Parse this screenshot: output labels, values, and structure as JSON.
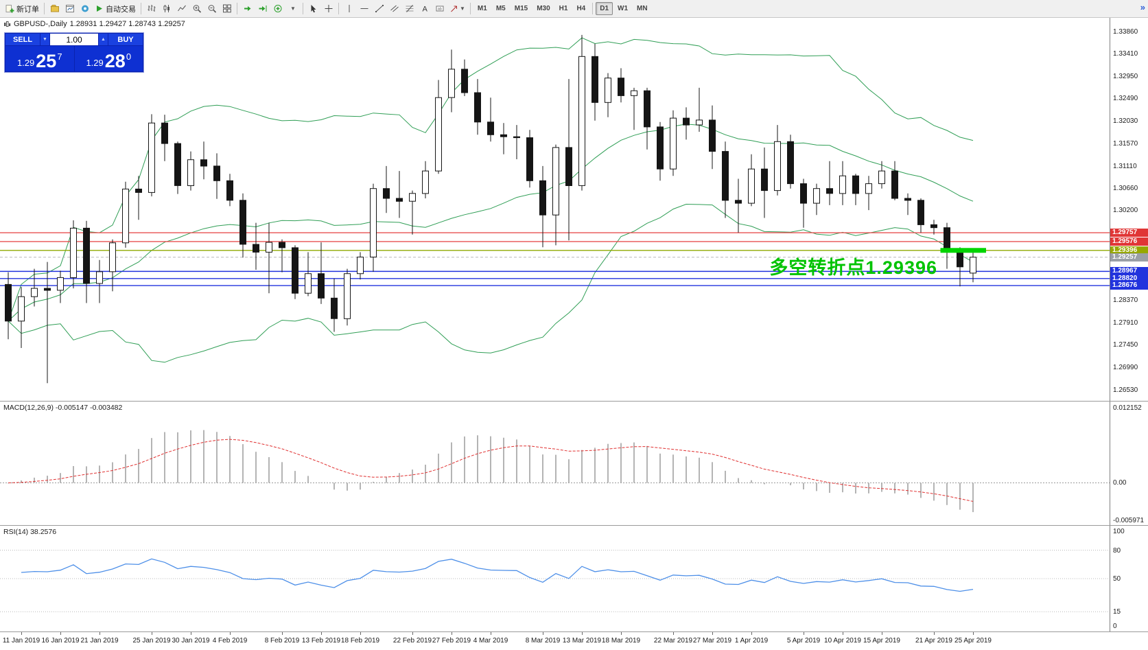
{
  "toolbar": {
    "new_order_label": "新订单",
    "autotrading_label": "自动交易",
    "timeframes": [
      "M1",
      "M5",
      "M15",
      "M30",
      "H1",
      "H4",
      "D1",
      "W1",
      "MN"
    ],
    "active_timeframe": "D1",
    "overflow_label": "»"
  },
  "symbol_info": {
    "symbol_period": "GBPUSD-,Daily",
    "ohlc": "1.28931 1.29427 1.28743 1.29257"
  },
  "trade_panel": {
    "sell_label": "SELL",
    "buy_label": "BUY",
    "volume": "1.00",
    "sell_price_main": "1.29",
    "sell_price_big": "25",
    "sell_price_sup": "7",
    "buy_price_main": "1.29",
    "buy_price_big": "28",
    "buy_price_sup": "0"
  },
  "annotation": {
    "text": "多空转折点1.29396",
    "color": "#00c300"
  },
  "chart_data": {
    "type": "candlestick",
    "symbol": "GBPUSD",
    "timeframe": "Daily",
    "ohlc_display": {
      "open": "1.28931",
      "high": "1.29427",
      "low": "1.28743",
      "close": "1.29257"
    },
    "y_range": {
      "max": 1.3415,
      "min": 1.2632
    },
    "candle_format": [
      "date",
      "open",
      "high",
      "low",
      "close"
    ],
    "candles": [
      [
        "10 Jan 2019",
        1.287,
        1.2895,
        1.2758,
        1.2795
      ],
      [
        "11 Jan 2019",
        1.2795,
        1.2865,
        1.274,
        1.2845
      ],
      [
        "14 Jan 2019",
        1.2845,
        1.2902,
        1.2825,
        1.2862
      ],
      [
        "15 Jan 2019",
        1.2862,
        1.2916,
        1.2668,
        1.2858
      ],
      [
        "16 Jan 2019",
        1.2858,
        1.2898,
        1.2832,
        1.2884
      ],
      [
        "17 Jan 2019",
        1.2884,
        1.3001,
        1.2862,
        1.2985
      ],
      [
        "18 Jan 2019",
        1.2985,
        1.3,
        1.2832,
        1.2872
      ],
      [
        "21 Jan 2019",
        1.2872,
        1.292,
        1.2832,
        1.2896
      ],
      [
        "22 Jan 2019",
        1.2896,
        1.2962,
        1.2856,
        1.2955
      ],
      [
        "23 Jan 2019",
        1.2955,
        1.308,
        1.2945,
        1.3065
      ],
      [
        "24 Jan 2019",
        1.3065,
        1.3092,
        1.3002,
        1.3058
      ],
      [
        "25 Jan 2019",
        1.3058,
        1.3218,
        1.305,
        1.32
      ],
      [
        "28 Jan 2019",
        1.32,
        1.3217,
        1.3122,
        1.3158
      ],
      [
        "29 Jan 2019",
        1.3158,
        1.3162,
        1.3055,
        1.3072
      ],
      [
        "30 Jan 2019",
        1.3072,
        1.3142,
        1.3062,
        1.3125
      ],
      [
        "31 Jan 2019",
        1.3125,
        1.3162,
        1.3085,
        1.3112
      ],
      [
        "1 Feb 2019",
        1.3112,
        1.3138,
        1.3045,
        1.3082
      ],
      [
        "4 Feb 2019",
        1.3082,
        1.3096,
        1.303,
        1.3042
      ],
      [
        "5 Feb 2019",
        1.3042,
        1.3056,
        1.2925,
        1.2952
      ],
      [
        "6 Feb 2019",
        1.2952,
        1.2996,
        1.29,
        1.2936
      ],
      [
        "7 Feb 2019",
        1.2936,
        1.2996,
        1.2852,
        1.2956
      ],
      [
        "8 Feb 2019",
        1.2956,
        1.2962,
        1.2895,
        1.2945
      ],
      [
        "11 Feb 2019",
        1.2945,
        1.295,
        1.284,
        1.2852
      ],
      [
        "12 Feb 2019",
        1.2852,
        1.2936,
        1.2846,
        1.2892
      ],
      [
        "13 Feb 2019",
        1.2892,
        1.2956,
        1.283,
        1.2842
      ],
      [
        "14 Feb 2019",
        1.2842,
        1.2882,
        1.2773,
        1.28
      ],
      [
        "15 Feb 2019",
        1.28,
        1.2902,
        1.2786,
        1.2892
      ],
      [
        "18 Feb 2019",
        1.2892,
        1.2936,
        1.288,
        1.2926
      ],
      [
        "19 Feb 2019",
        1.2926,
        1.3076,
        1.2896,
        1.3066
      ],
      [
        "20 Feb 2019",
        1.3066,
        1.3112,
        1.3016,
        1.3046
      ],
      [
        "21 Feb 2019",
        1.3046,
        1.3102,
        1.3006,
        1.304
      ],
      [
        "22 Feb 2019",
        1.304,
        1.3062,
        1.2972,
        1.3056
      ],
      [
        "25 Feb 2019",
        1.3056,
        1.3122,
        1.3046,
        1.3102
      ],
      [
        "26 Feb 2019",
        1.3102,
        1.3288,
        1.3096,
        1.3252
      ],
      [
        "27 Feb 2019",
        1.3252,
        1.335,
        1.3222,
        1.331
      ],
      [
        "28 Feb 2019",
        1.331,
        1.333,
        1.3255,
        1.3262
      ],
      [
        "1 Mar 2019",
        1.3262,
        1.329,
        1.3176,
        1.3202
      ],
      [
        "4 Mar 2019",
        1.3202,
        1.3252,
        1.3162,
        1.3176
      ],
      [
        "5 Mar 2019",
        1.3176,
        1.32,
        1.3136,
        1.3172
      ],
      [
        "6 Mar 2019",
        1.3172,
        1.3196,
        1.3126,
        1.317
      ],
      [
        "7 Mar 2019",
        1.317,
        1.3186,
        1.3068,
        1.3082
      ],
      [
        "8 Mar 2019",
        1.3082,
        1.3112,
        1.2946,
        1.3012
      ],
      [
        "11 Mar 2019",
        1.3012,
        1.3156,
        1.295,
        1.315
      ],
      [
        "12 Mar 2019",
        1.315,
        1.329,
        1.296,
        1.3072
      ],
      [
        "13 Mar 2019",
        1.3072,
        1.338,
        1.3062,
        1.3336
      ],
      [
        "14 Mar 2019",
        1.3336,
        1.3362,
        1.3205,
        1.3242
      ],
      [
        "15 Mar 2019",
        1.3242,
        1.3302,
        1.3212,
        1.3292
      ],
      [
        "18 Mar 2019",
        1.3292,
        1.3312,
        1.3242,
        1.3256
      ],
      [
        "19 Mar 2019",
        1.3256,
        1.3272,
        1.3186,
        1.3266
      ],
      [
        "20 Mar 2019",
        1.3266,
        1.3272,
        1.3146,
        1.3192
      ],
      [
        "21 Mar 2019",
        1.3192,
        1.3202,
        1.3082,
        1.3106
      ],
      [
        "22 Mar 2019",
        1.3106,
        1.3226,
        1.3092,
        1.321
      ],
      [
        "25 Mar 2019",
        1.321,
        1.3232,
        1.3166,
        1.3196
      ],
      [
        "26 Mar 2019",
        1.3196,
        1.3272,
        1.3182,
        1.3206
      ],
      [
        "27 Mar 2019",
        1.3206,
        1.3236,
        1.3106,
        1.3142
      ],
      [
        "28 Mar 2019",
        1.3142,
        1.3162,
        1.3006,
        1.3042
      ],
      [
        "29 Mar 2019",
        1.3042,
        1.3086,
        1.2976,
        1.3036
      ],
      [
        "1 Apr 2019",
        1.3036,
        1.3136,
        1.303,
        1.3106
      ],
      [
        "2 Apr 2019",
        1.3106,
        1.315,
        1.3006,
        1.3062
      ],
      [
        "3 Apr 2019",
        1.3062,
        1.3196,
        1.3052,
        1.3162
      ],
      [
        "4 Apr 2019",
        1.3162,
        1.3176,
        1.3066,
        1.3076
      ],
      [
        "5 Apr 2019",
        1.3076,
        1.3086,
        1.2986,
        1.3036
      ],
      [
        "8 Apr 2019",
        1.3036,
        1.3076,
        1.3012,
        1.3066
      ],
      [
        "9 Apr 2019",
        1.3066,
        1.3122,
        1.3032,
        1.3056
      ],
      [
        "10 Apr 2019",
        1.3056,
        1.3122,
        1.3032,
        1.3092
      ],
      [
        "11 Apr 2019",
        1.3092,
        1.3096,
        1.3032,
        1.3056
      ],
      [
        "12 Apr 2019",
        1.3056,
        1.3092,
        1.3022,
        1.3076
      ],
      [
        "15 Apr 2019",
        1.3076,
        1.3122,
        1.3066,
        1.3102
      ],
      [
        "16 Apr 2019",
        1.3102,
        1.3122,
        1.3042,
        1.3046
      ],
      [
        "17 Apr 2019",
        1.3046,
        1.3056,
        1.3012,
        1.3042
      ],
      [
        "18 Apr 2019",
        1.3042,
        1.3046,
        1.2976,
        1.2992
      ],
      [
        "21 Apr 2019",
        1.2992,
        1.3002,
        1.2972,
        1.2986
      ],
      [
        "23 Apr 2019",
        1.2986,
        1.2996,
        1.2902,
        1.2936
      ],
      [
        "24 Apr 2019",
        1.2936,
        1.2946,
        1.2866,
        1.2906
      ],
      [
        "25 Apr 2019",
        1.28931,
        1.29427,
        1.28743,
        1.29257
      ]
    ],
    "time_labels": [
      [
        1,
        "11 Jan 2019"
      ],
      [
        4,
        "16 Jan 2019"
      ],
      [
        7,
        "21 Jan 2019"
      ],
      [
        11,
        "25 Jan 2019"
      ],
      [
        14,
        "30 Jan 2019"
      ],
      [
        17,
        "4 Feb 2019"
      ],
      [
        21,
        "8 Feb 2019"
      ],
      [
        24,
        "13 Feb 2019"
      ],
      [
        27,
        "18 Feb 2019"
      ],
      [
        31,
        "22 Feb 2019"
      ],
      [
        34,
        "27 Feb 2019"
      ],
      [
        37,
        "4 Mar 2019"
      ],
      [
        41,
        "8 Mar 2019"
      ],
      [
        44,
        "13 Mar 2019"
      ],
      [
        47,
        "18 Mar 2019"
      ],
      [
        51,
        "22 Mar 2019"
      ],
      [
        54,
        "27 Mar 2019"
      ],
      [
        57,
        "1 Apr 2019"
      ],
      [
        61,
        "5 Apr 2019"
      ],
      [
        64,
        "10 Apr 2019"
      ],
      [
        67,
        "15 Apr 2019"
      ],
      [
        71,
        "21 Apr 2019"
      ],
      [
        74,
        "25 Apr 2019"
      ]
    ],
    "price_ticks": [
      "1.33860",
      "1.33410",
      "1.32950",
      "1.32490",
      "1.32030",
      "1.31570",
      "1.31110",
      "1.30660",
      "1.30200",
      "1.28370",
      "1.27910",
      "1.27450",
      "1.26990",
      "1.26530"
    ],
    "levels": [
      {
        "price": 1.29757,
        "label": "1.29757",
        "color": "#e85050",
        "label_bg": "#e03636"
      },
      {
        "price": 1.29576,
        "label": "1.29576",
        "color": "#e85050",
        "label_bg": "#e03636"
      },
      {
        "price": 1.29396,
        "label": "1.29396",
        "color": "#8faa00",
        "label_bg": "#97a800"
      },
      {
        "price": 1.28967,
        "label": "1.28967",
        "color": "#2233dd",
        "label_bg": "#2233dd"
      },
      {
        "price": 1.2882,
        "label": "1.28820",
        "color": "#2233dd",
        "label_bg": "#2233dd"
      },
      {
        "price": 1.28676,
        "label": "1.28676",
        "color": "#2233dd",
        "label_bg": "#2233dd"
      }
    ],
    "current_price": {
      "value": 1.29257,
      "label": "1.29257",
      "label_bg": "#9a9fa6",
      "line_color": "#b8b8b8"
    },
    "highlight_bar": {
      "price": 1.29396,
      "start_index": 71.5,
      "end_index": 75.0,
      "color": "#00d400"
    },
    "bollinger": {
      "period": 20,
      "deviation": 2,
      "color": "#2f9e55"
    },
    "colors": {
      "bull": "#ffffff",
      "bear": "#151515",
      "outline": "#151515"
    }
  },
  "macd": {
    "label": "MACD(12,26,9) -0.005147 -0.003482",
    "fast": 12,
    "slow": 26,
    "signal": 9,
    "value": "-0.005147",
    "signal_value": "-0.003482",
    "axis": [
      {
        "v": 0.012152,
        "text": "0.012152"
      },
      {
        "v": 0,
        "text": "0.00"
      },
      {
        "v": -0.005971,
        "text": "-0.005971"
      }
    ],
    "range": {
      "max": 0.0131,
      "min": -0.0068
    },
    "histogram_color": "#b4b4b4",
    "signal_color": "#e03030"
  },
  "rsi": {
    "label": "RSI(14) 38.2576",
    "period": 14,
    "value": "38.2576",
    "axis": [
      {
        "v": 100,
        "text": "100"
      },
      {
        "v": 80,
        "text": "80"
      },
      {
        "v": 50,
        "text": "50"
      },
      {
        "v": 15,
        "text": "15"
      },
      {
        "v": 0,
        "text": "0"
      }
    ],
    "levels": [
      80,
      50,
      15
    ],
    "line_color": "#4d8fe8"
  }
}
